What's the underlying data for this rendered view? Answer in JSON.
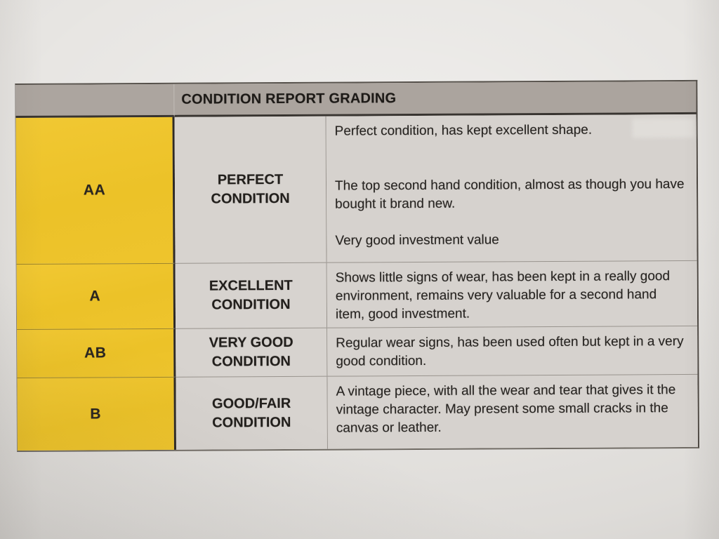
{
  "photo": {
    "page_background": "#e7e5e2"
  },
  "table": {
    "title": "CONDITION REPORT GRADING",
    "colors": {
      "header_bg": "#aba49e",
      "grade_column_bg": "#ecc32a",
      "cell_bg": "#d6d2ce",
      "text": "#26221f",
      "grid_line": "#98938d",
      "heavy_border": "#2e2a26"
    },
    "rows": [
      {
        "grade": "AA",
        "condition_line1": "PERFECT",
        "condition_line2": "CONDITION",
        "paragraphs": [
          "Perfect condition, has kept excellent shape.",
          "The top second hand condition, almost as though you have bought it brand new.",
          "Very good investment value"
        ]
      },
      {
        "grade": "A",
        "condition_line1": "EXCELLENT",
        "condition_line2": "CONDITION",
        "paragraphs": [
          "Shows little signs of wear, has been kept in a really good environment, remains very valuable for a second hand item, good investment."
        ]
      },
      {
        "grade": "AB",
        "condition_line1": "VERY GOOD",
        "condition_line2": "CONDITION",
        "paragraphs": [
          "Regular wear signs, has been used often but kept in a very good condition."
        ]
      },
      {
        "grade": "B",
        "condition_line1": "GOOD/FAIR",
        "condition_line2": "CONDITION",
        "paragraphs": [
          "A vintage piece, with all the wear and tear that gives it the vintage character. May present some small cracks in the canvas or leather."
        ]
      }
    ]
  }
}
